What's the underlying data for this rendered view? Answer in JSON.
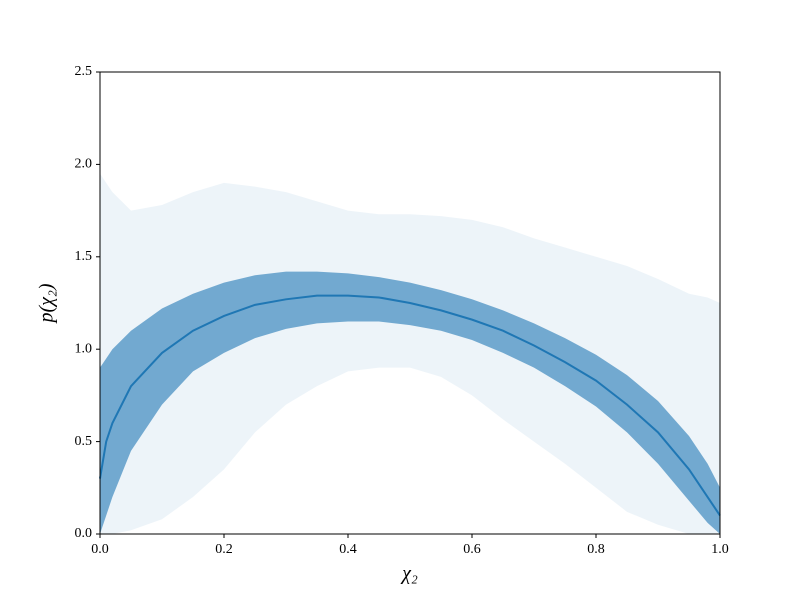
{
  "chart_data": {
    "type": "line",
    "xlabel": "χ₂",
    "ylabel": "p(χ₂)",
    "x": [
      0,
      0.01,
      0.02,
      0.05,
      0.1,
      0.15,
      0.2,
      0.25,
      0.3,
      0.35,
      0.4,
      0.45,
      0.5,
      0.55,
      0.6,
      0.65,
      0.7,
      0.75,
      0.8,
      0.85,
      0.9,
      0.95,
      0.98,
      1.0
    ],
    "bands": [
      {
        "color": "#1f77b4",
        "opacity": 0.08,
        "lower": [
          0,
          0,
          0,
          0.02,
          0.08,
          0.2,
          0.35,
          0.55,
          0.7,
          0.8,
          0.88,
          0.9,
          0.9,
          0.85,
          0.75,
          0.62,
          0.5,
          0.38,
          0.25,
          0.12,
          0.05,
          0,
          0,
          0
        ],
        "upper": [
          1.95,
          1.9,
          1.85,
          1.75,
          1.78,
          1.85,
          1.9,
          1.88,
          1.85,
          1.8,
          1.75,
          1.73,
          1.73,
          1.72,
          1.7,
          1.66,
          1.6,
          1.55,
          1.5,
          1.45,
          1.38,
          1.3,
          1.28,
          1.25
        ]
      },
      {
        "color": "#1f77b4",
        "opacity": 0.6,
        "lower": [
          0,
          0.1,
          0.2,
          0.45,
          0.7,
          0.88,
          0.98,
          1.06,
          1.11,
          1.14,
          1.15,
          1.15,
          1.13,
          1.1,
          1.05,
          0.98,
          0.9,
          0.8,
          0.69,
          0.55,
          0.38,
          0.18,
          0.06,
          0
        ],
        "upper": [
          0.9,
          0.95,
          1.0,
          1.1,
          1.22,
          1.3,
          1.36,
          1.4,
          1.42,
          1.42,
          1.41,
          1.39,
          1.36,
          1.32,
          1.27,
          1.21,
          1.14,
          1.06,
          0.97,
          0.86,
          0.72,
          0.53,
          0.38,
          0.25
        ]
      }
    ],
    "series": [
      {
        "color": "#1f77b4",
        "values": [
          0.3,
          0.5,
          0.6,
          0.8,
          0.98,
          1.1,
          1.18,
          1.24,
          1.27,
          1.29,
          1.29,
          1.28,
          1.25,
          1.21,
          1.16,
          1.1,
          1.02,
          0.93,
          0.83,
          0.7,
          0.55,
          0.35,
          0.2,
          0.1
        ]
      }
    ],
    "xlim": [
      0,
      1
    ],
    "xticks": [
      {
        "value": 0,
        "label": "0.0"
      },
      0.2,
      0.4,
      0.6,
      0.8,
      {
        "value": 1,
        "label": "1.0"
      }
    ],
    "ylim": [
      0,
      2.5
    ],
    "yticks": [
      {
        "value": 0,
        "label": "0.0"
      },
      0.5,
      {
        "value": 1,
        "label": "1.0"
      },
      1.5,
      {
        "value": 2,
        "label": "2.0"
      },
      2.5
    ]
  }
}
